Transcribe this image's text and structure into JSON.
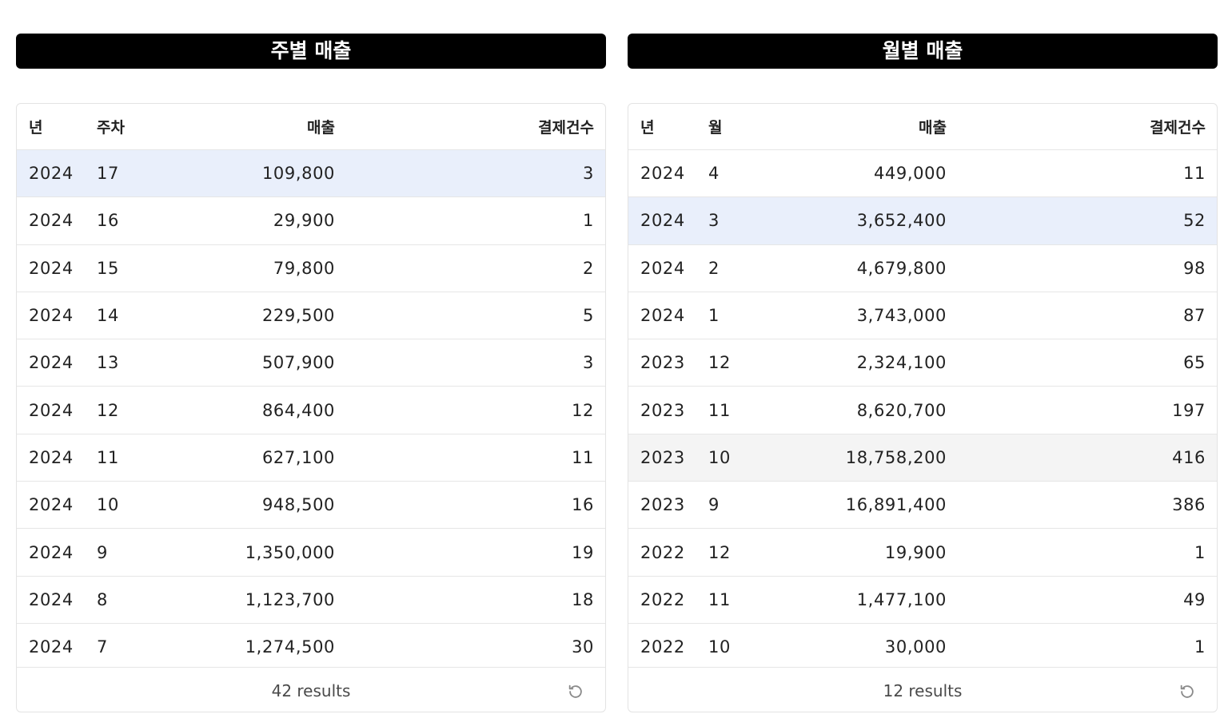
{
  "weekly": {
    "title": "주별 매출",
    "columns": {
      "year": "년",
      "period": "주차",
      "sales": "매출",
      "count": "결제건수"
    },
    "selected_row": 0,
    "hover_row": -1,
    "rows": [
      {
        "year": "2024",
        "period": "17",
        "sales": "109,800",
        "count": "3"
      },
      {
        "year": "2024",
        "period": "16",
        "sales": "29,900",
        "count": "1"
      },
      {
        "year": "2024",
        "period": "15",
        "sales": "79,800",
        "count": "2"
      },
      {
        "year": "2024",
        "period": "14",
        "sales": "229,500",
        "count": "5"
      },
      {
        "year": "2024",
        "period": "13",
        "sales": "507,900",
        "count": "3"
      },
      {
        "year": "2024",
        "period": "12",
        "sales": "864,400",
        "count": "12"
      },
      {
        "year": "2024",
        "period": "11",
        "sales": "627,100",
        "count": "11"
      },
      {
        "year": "2024",
        "period": "10",
        "sales": "948,500",
        "count": "16"
      },
      {
        "year": "2024",
        "period": "9",
        "sales": "1,350,000",
        "count": "19"
      },
      {
        "year": "2024",
        "period": "8",
        "sales": "1,123,700",
        "count": "18"
      },
      {
        "year": "2024",
        "period": "7",
        "sales": "1,274,500",
        "count": "30"
      }
    ],
    "results": "42 results",
    "reset_icon": "reset-icon"
  },
  "monthly": {
    "title": "월별 매출",
    "columns": {
      "year": "년",
      "period": "월",
      "sales": "매출",
      "count": "결제건수"
    },
    "selected_row": 1,
    "hover_row": 6,
    "rows": [
      {
        "year": "2024",
        "period": "4",
        "sales": "449,000",
        "count": "11"
      },
      {
        "year": "2024",
        "period": "3",
        "sales": "3,652,400",
        "count": "52"
      },
      {
        "year": "2024",
        "period": "2",
        "sales": "4,679,800",
        "count": "98"
      },
      {
        "year": "2024",
        "period": "1",
        "sales": "3,743,000",
        "count": "87"
      },
      {
        "year": "2023",
        "period": "12",
        "sales": "2,324,100",
        "count": "65"
      },
      {
        "year": "2023",
        "period": "11",
        "sales": "8,620,700",
        "count": "197"
      },
      {
        "year": "2023",
        "period": "10",
        "sales": "18,758,200",
        "count": "416"
      },
      {
        "year": "2023",
        "period": "9",
        "sales": "16,891,400",
        "count": "386"
      },
      {
        "year": "2022",
        "period": "12",
        "sales": "19,900",
        "count": "1"
      },
      {
        "year": "2022",
        "period": "11",
        "sales": "1,477,100",
        "count": "49"
      },
      {
        "year": "2022",
        "period": "10",
        "sales": "30,000",
        "count": "1"
      }
    ],
    "results": "12 results",
    "reset_icon": "reset-icon"
  },
  "colors": {
    "title_bg": "#000000",
    "selected_row": "#e9effb",
    "hover_row": "#f4f4f4"
  }
}
